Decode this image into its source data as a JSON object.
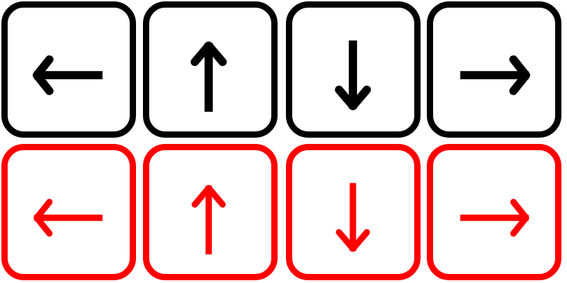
{
  "rows": [
    {
      "color": "#000000",
      "style": "thick",
      "keys": [
        {
          "direction": "left",
          "icon": "arrow-left-icon"
        },
        {
          "direction": "up",
          "icon": "arrow-up-icon"
        },
        {
          "direction": "down",
          "icon": "arrow-down-icon"
        },
        {
          "direction": "right",
          "icon": "arrow-right-icon"
        }
      ]
    },
    {
      "color": "#ff0000",
      "style": "thin",
      "keys": [
        {
          "direction": "left",
          "icon": "arrow-left-icon"
        },
        {
          "direction": "up",
          "icon": "arrow-up-icon"
        },
        {
          "direction": "down",
          "icon": "arrow-down-icon"
        },
        {
          "direction": "right",
          "icon": "arrow-right-icon"
        }
      ]
    }
  ]
}
